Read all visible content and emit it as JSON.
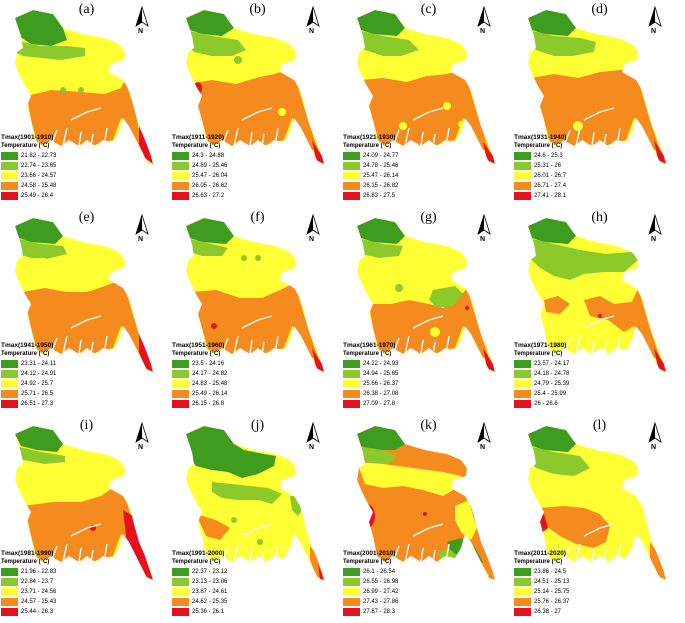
{
  "legend_subtitle": "Temperature (°C)",
  "north_label": "N",
  "class_colors": [
    "#3e9c1e",
    "#8cc92a",
    "#ffff33",
    "#f58a1e",
    "#e8101e"
  ],
  "panels": [
    {
      "label": "(a)",
      "title": "Tmax(1901-1910)",
      "ranges": [
        "21.82 - 22.73",
        "22.74 - 23.65",
        "23.66 - 24.57",
        "24.58 - 25.48",
        "25.49 - 26.4"
      ]
    },
    {
      "label": "(b)",
      "title": "Tmax(1911-1920)",
      "ranges": [
        "24.3 - 24.88",
        "24.89 - 25.46",
        "25.47 - 26.04",
        "26.05 - 26.62",
        "26.63 - 27.2"
      ]
    },
    {
      "label": "(c)",
      "title": "Tmax(1921-1930)",
      "ranges": [
        "24.09 - 24.77",
        "24.78 - 25.46",
        "25.47 - 26.14",
        "26.15 - 26.82",
        "26.83 - 27.5"
      ]
    },
    {
      "label": "(d)",
      "title": "Tmax(1931-1940)",
      "ranges": [
        "24.6 - 25.3",
        "25.31 - 26",
        "26.01 - 26.7",
        "26.71 - 27.4",
        "27.41 - 28.1"
      ]
    },
    {
      "label": "(e)",
      "title": "Tmax(1941-1950)",
      "ranges": [
        "23.31 - 24.11",
        "24.12 - 24.91",
        "24.92 - 25.7",
        "25.71 - 26.5",
        "26.51 - 27.3"
      ]
    },
    {
      "label": "(f)",
      "title": "Tmax(1951-1960)",
      "ranges": [
        "23.5 - 24.16",
        "24.17 - 24.82",
        "24.83 - 25.48",
        "25.49 - 26.14",
        "26.15 - 26.8"
      ]
    },
    {
      "label": "(g)",
      "title": "Tmax(1961-1970)",
      "ranges": [
        "24.22 - 24.93",
        "24.94 - 25.65",
        "25.66 - 26.37",
        "26.38 - 27.08",
        "27.09 - 27.8"
      ]
    },
    {
      "label": "(h)",
      "title": "Tmax(1971-1980)",
      "ranges": [
        "23.57 - 24.17",
        "24.18 - 24.78",
        "24.79 - 25.39",
        "25.4 - 25.99",
        "26 - 26.6"
      ]
    },
    {
      "label": "(i)",
      "title": "Tmax(1981-1990)",
      "ranges": [
        "21.96 - 22.83",
        "22.84 - 23.7",
        "23.71 - 24.56",
        "24.57 - 25.43",
        "25.44 - 26.3"
      ]
    },
    {
      "label": "(j)",
      "title": "Tmax(1991-2000)",
      "ranges": [
        "22.37 - 23.12",
        "23.13 - 23.86",
        "23.87 - 24.61",
        "24.62 - 25.35",
        "25.36 - 26.1"
      ]
    },
    {
      "label": "(k)",
      "title": "Tmax(2001-2010)",
      "ranges": [
        "26.1 - 26.54",
        "26.55 - 26.98",
        "26.99 - 27.42",
        "27.43 - 27.86",
        "27.87 - 28.3"
      ]
    },
    {
      "label": "(l)",
      "title": "Tmax(2011-2020)",
      "ranges": [
        "23.86 - 24.5",
        "24.51 - 25.13",
        "25.14 - 25.75",
        "25.76 - 26.37",
        "26.38 - 27"
      ]
    }
  ]
}
